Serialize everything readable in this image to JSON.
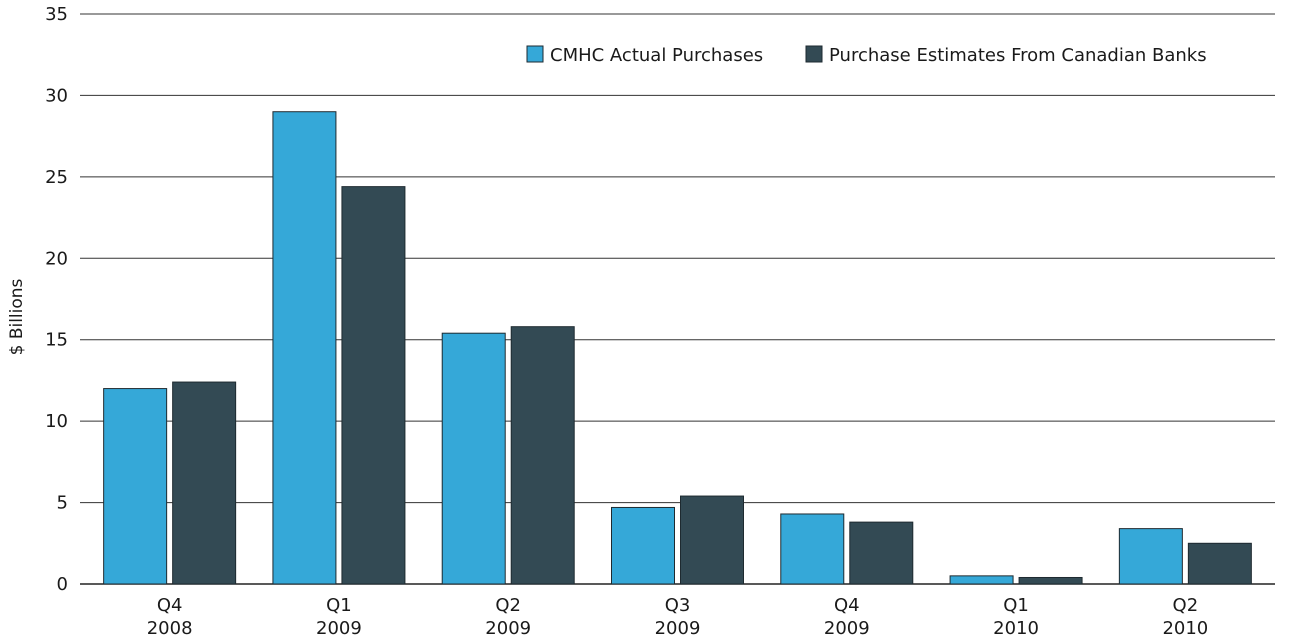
{
  "chart_data": {
    "type": "bar",
    "ylabel": "$ Billions",
    "ylim": [
      0,
      35
    ],
    "yticks": [
      "0",
      "5",
      "10",
      "15",
      "20",
      "25",
      "30",
      "35"
    ],
    "grid": true,
    "legend_position": "top-right",
    "categories": [
      {
        "quarter": "Q4",
        "year": "2008"
      },
      {
        "quarter": "Q1",
        "year": "2009"
      },
      {
        "quarter": "Q2",
        "year": "2009"
      },
      {
        "quarter": "Q3",
        "year": "2009"
      },
      {
        "quarter": "Q4",
        "year": "2009"
      },
      {
        "quarter": "Q1",
        "year": "2010"
      },
      {
        "quarter": "Q2",
        "year": "2010"
      }
    ],
    "series": [
      {
        "name": "CMHC Actual Purchases",
        "color": "#35a8d8",
        "values": [
          12.0,
          29.0,
          15.4,
          4.7,
          4.3,
          0.5,
          3.4
        ]
      },
      {
        "name": "Purchase Estimates From Canadian Banks",
        "color": "#334a54",
        "values": [
          12.4,
          24.4,
          15.8,
          5.4,
          3.8,
          0.4,
          2.5
        ]
      }
    ]
  }
}
